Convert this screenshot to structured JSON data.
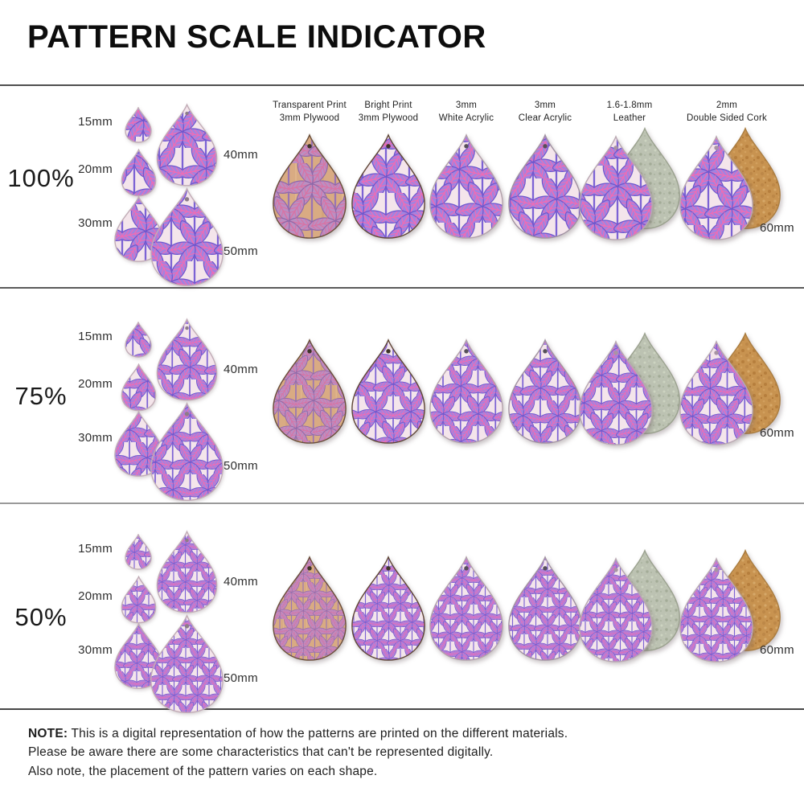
{
  "title": "PATTERN SCALE INDICATOR",
  "rows": [
    {
      "scale_label": "100%"
    },
    {
      "scale_label": "75%"
    },
    {
      "scale_label": "50%"
    }
  ],
  "cluster_sizes": [
    "15mm",
    "20mm",
    "30mm",
    "40mm",
    "50mm"
  ],
  "material_size_label": "60mm",
  "columns": [
    {
      "name": "transparent-plywood",
      "header_line1": "Transparent Print",
      "header_line2": "3mm Plywood",
      "scheme": "wood",
      "edge": "#6a4e39",
      "hole": "#3e3428"
    },
    {
      "name": "bright-plywood",
      "header_line1": "Bright Print",
      "header_line2": "3mm Plywood",
      "scheme": "pink",
      "edge": "#5f4636",
      "hole": "#3e3428"
    },
    {
      "name": "white-acrylic",
      "header_line1": "3mm",
      "header_line2": "White Acrylic",
      "scheme": "pink",
      "edge": "#b3a2ab",
      "hole": "#57505a"
    },
    {
      "name": "clear-acrylic",
      "header_line1": "3mm",
      "header_line2": "Clear Acrylic",
      "scheme": "pink",
      "edge": "#a293a2",
      "hole": "#57505a"
    },
    {
      "name": "leather",
      "header_line1": "1.6-1.8mm",
      "header_line2": "Leather",
      "scheme": "pink",
      "edge": "#b9a8b2",
      "hole": "#a894a4",
      "backing": "leather"
    },
    {
      "name": "cork",
      "header_line1": "2mm",
      "header_line2": "Double Sided Cork",
      "scheme": "pink",
      "edge": "#b9a8b2",
      "hole": "#a894a4",
      "backing": "cork"
    }
  ],
  "note": {
    "label": "NOTE:",
    "line1": "This is a digital representation of how the patterns are printed on the different materials.",
    "line2": "Please be aware there are some characteristics that can't be represented digitally.",
    "line3": "Also note, the placement of the pattern varies on each shape."
  },
  "pattern_colors": {
    "pink": {
      "bg": "#f4e5eb",
      "leaf": "#a283e0",
      "edge": "#6f55cc",
      "vein": "#ef6cb4",
      "stem": "#7c62d4"
    },
    "wood": {
      "bg": "#d9ab83",
      "leaf": "#bb8fc2",
      "edge": "#8f68a8",
      "vein": "#d873a4",
      "stem": "#9a74b4"
    },
    "leather_back": "#bcc2b2",
    "cork_back": "#c89350",
    "cluster_edge": "#c2adb7",
    "divider_dark": "#4f4f4f",
    "divider_light": "#9a9a9a"
  }
}
